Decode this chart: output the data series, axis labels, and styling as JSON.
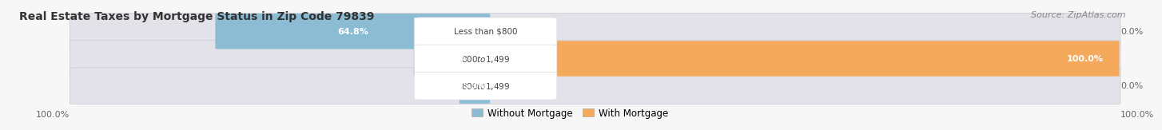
{
  "title": "Real Estate Taxes by Mortgage Status in Zip Code 79839",
  "source": "Source: ZipAtlas.com",
  "rows": [
    {
      "without_pct": 64.8,
      "with_pct": 0.0,
      "label": "Less than $800",
      "left_label": "64.8%",
      "right_label": "0.0%"
    },
    {
      "without_pct": 16.4,
      "with_pct": 100.0,
      "label": "$800 to $1,499",
      "left_label": "16.4%",
      "right_label": "100.0%"
    },
    {
      "without_pct": 5.3,
      "with_pct": 0.0,
      "label": "$800 to $1,499",
      "left_label": "5.3%",
      "right_label": "0.0%"
    }
  ],
  "without_color": "#8bbcd4",
  "with_color": "#f5a95c",
  "bar_bg_color": "#e2e2e8",
  "title_fontsize": 10,
  "source_fontsize": 8,
  "legend_labels": [
    "Without Mortgage",
    "With Mortgage"
  ],
  "bottom_left_label": "100.0%",
  "bottom_right_label": "100.0%"
}
